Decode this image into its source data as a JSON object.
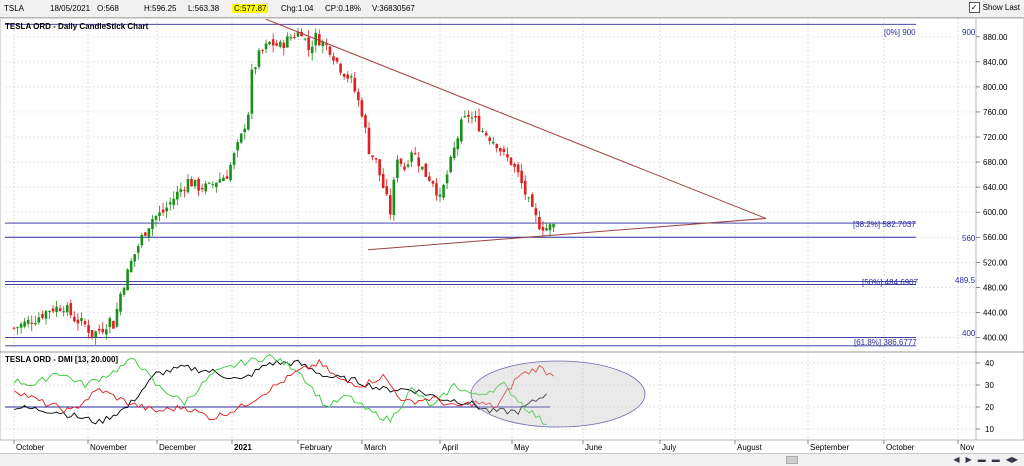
{
  "header": {
    "symbol": "TSLA",
    "date": "18/05/2021",
    "open": "O:568",
    "high": "H:596.25",
    "low": "L:563.38",
    "close": "C:577.87",
    "change": "Chg:1.04",
    "change_pct": "CP:0.18%",
    "volume": "V:36830567",
    "show_last": "Show Last"
  },
  "price_chart": {
    "title": "TESLA ORD - Daily CandleStick Chart"
  },
  "dmi_chart": {
    "title": "TESLA ORD - DMI [13, 20.000]"
  },
  "annotations": {
    "fib0": "[0%] 900",
    "fib382": "[38.2%] 582.7037",
    "fib50": "[50%] 484.6907",
    "fib618": "[61.8%] 386.6777",
    "lvl900": "900",
    "lvl560": "560",
    "lvl489": "489.5",
    "lvl400": "400"
  },
  "colors": {
    "up": "#1a8f1a",
    "down": "#e02020",
    "hline": "#2b2b9e",
    "trend": "#a04040",
    "adx": "#000000",
    "di_plus": "#33cc33",
    "di_minus": "#e02020"
  },
  "chart_data": [
    {
      "type": "candlestick",
      "title": "TESLA ORD - Daily CandleStick Chart",
      "x": [
        "October",
        "November",
        "December",
        "2021",
        "February",
        "March",
        "April",
        "May",
        "June",
        "July",
        "August",
        "September",
        "October",
        "Nov"
      ],
      "ylim": [
        380,
        910
      ],
      "y_ticks": [
        400,
        440,
        480,
        520,
        560,
        600,
        640,
        680,
        720,
        760,
        800,
        840,
        880
      ],
      "close_path": [
        [
          0,
          415
        ],
        [
          6,
          430
        ],
        [
          10,
          445
        ],
        [
          14,
          450
        ],
        [
          17,
          430
        ],
        [
          20,
          420
        ],
        [
          22,
          405
        ],
        [
          25,
          415
        ],
        [
          27,
          428
        ],
        [
          28,
          420
        ],
        [
          30,
          470
        ],
        [
          33,
          520
        ],
        [
          36,
          560
        ],
        [
          39,
          590
        ],
        [
          42,
          600
        ],
        [
          46,
          630
        ],
        [
          49,
          650
        ],
        [
          52,
          640
        ],
        [
          55,
          640
        ],
        [
          57,
          650
        ],
        [
          60,
          660
        ],
        [
          62,
          690
        ],
        [
          64,
          720
        ],
        [
          66,
          760
        ],
        [
          67,
          820
        ],
        [
          69,
          850
        ],
        [
          72,
          870
        ],
        [
          75,
          865
        ],
        [
          78,
          880
        ],
        [
          81,
          890
        ],
        [
          83,
          860
        ],
        [
          85,
          880
        ],
        [
          87,
          870
        ],
        [
          89,
          860
        ],
        [
          92,
          830
        ],
        [
          95,
          810
        ],
        [
          98,
          760
        ],
        [
          100,
          700
        ],
        [
          102,
          680
        ],
        [
          104,
          640
        ],
        [
          106,
          600
        ],
        [
          108,
          690
        ],
        [
          110,
          670
        ],
        [
          112,
          700
        ],
        [
          114,
          680
        ],
        [
          116,
          660
        ],
        [
          118,
          650
        ],
        [
          120,
          620
        ],
        [
          122,
          660
        ],
        [
          124,
          700
        ],
        [
          126,
          740
        ],
        [
          128,
          755
        ],
        [
          130,
          745
        ],
        [
          132,
          730
        ],
        [
          134,
          720
        ],
        [
          136,
          710
        ],
        [
          138,
          690
        ],
        [
          140,
          680
        ],
        [
          142,
          660
        ],
        [
          144,
          630
        ],
        [
          146,
          600
        ],
        [
          148,
          580
        ],
        [
          150,
          575
        ],
        [
          152,
          578
        ]
      ],
      "horizontal_levels": [
        900,
        582.7037,
        560,
        489.5,
        484.6907,
        400,
        386.6777
      ],
      "trendlines": [
        {
          "from": [
            "2021-01-26",
            908
          ],
          "to": [
            "2021-08-10",
            590
          ]
        },
        {
          "from": [
            "2021-03-05",
            540
          ],
          "to": [
            "2021-08-10",
            590
          ]
        }
      ],
      "fibonacci": [
        {
          "label": "[0%]",
          "value": 900
        },
        {
          "label": "[38.2%]",
          "value": 582.7037
        },
        {
          "label": "[50%]",
          "value": 484.6907
        },
        {
          "label": "[61.8%]",
          "value": 386.6777
        }
      ]
    },
    {
      "type": "line",
      "title": "TESLA ORD - DMI [13, 20.000]",
      "ylim": [
        5,
        45
      ],
      "y_ticks": [
        10,
        20,
        30,
        40
      ],
      "reference_line": 20,
      "series": [
        {
          "color": "#000000",
          "values": [
            [
              0,
              20
            ],
            [
              12,
              18
            ],
            [
              24,
              13
            ],
            [
              32,
              20
            ],
            [
              40,
              35
            ],
            [
              48,
              38
            ],
            [
              56,
              36
            ],
            [
              64,
              32
            ],
            [
              72,
              40
            ],
            [
              80,
              40
            ],
            [
              88,
              34
            ],
            [
              96,
              32
            ],
            [
              104,
              28
            ],
            [
              112,
              28
            ],
            [
              120,
              24
            ],
            [
              128,
              22
            ],
            [
              134,
              18
            ],
            [
              142,
              18
            ],
            [
              150,
              26
            ]
          ]
        },
        {
          "color": "#33cc33",
          "values": [
            [
              0,
              32
            ],
            [
              6,
              30
            ],
            [
              12,
              36
            ],
            [
              20,
              30
            ],
            [
              28,
              36
            ],
            [
              34,
              42
            ],
            [
              40,
              30
            ],
            [
              48,
              22
            ],
            [
              56,
              35
            ],
            [
              64,
              40
            ],
            [
              72,
              43
            ],
            [
              80,
              37
            ],
            [
              88,
              20
            ],
            [
              94,
              25
            ],
            [
              100,
              18
            ],
            [
              106,
              14
            ],
            [
              112,
              28
            ],
            [
              118,
              20
            ],
            [
              124,
              30
            ],
            [
              130,
              25
            ],
            [
              138,
              30
            ],
            [
              144,
              20
            ],
            [
              150,
              12
            ]
          ]
        },
        {
          "color": "#e02020",
          "values": [
            [
              0,
              28
            ],
            [
              8,
              22
            ],
            [
              16,
              18
            ],
            [
              24,
              28
            ],
            [
              32,
              22
            ],
            [
              40,
              18
            ],
            [
              48,
              20
            ],
            [
              56,
              15
            ],
            [
              64,
              20
            ],
            [
              72,
              28
            ],
            [
              80,
              36
            ],
            [
              86,
              40
            ],
            [
              92,
              32
            ],
            [
              98,
              30
            ],
            [
              104,
              34
            ],
            [
              110,
              22
            ],
            [
              118,
              24
            ],
            [
              124,
              20
            ],
            [
              130,
              22
            ],
            [
              136,
              20
            ],
            [
              142,
              34
            ],
            [
              148,
              38
            ],
            [
              152,
              34
            ]
          ]
        }
      ]
    }
  ]
}
